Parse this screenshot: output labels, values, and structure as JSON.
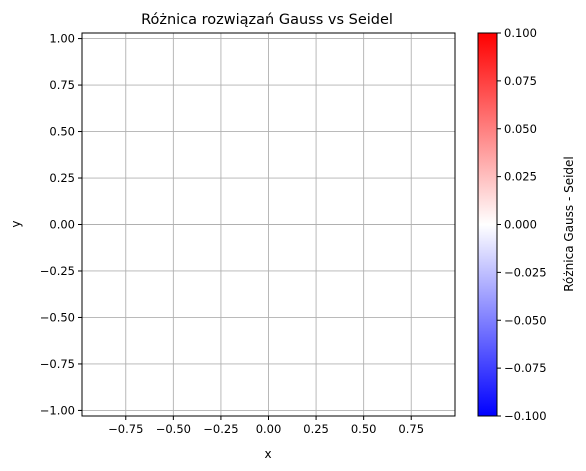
{
  "chart_data": {
    "type": "heatmap",
    "title": "Różnica rozwiązań Gauss vs Seidel",
    "xlabel": "x",
    "ylabel": "y",
    "xlim": [
      -0.98,
      0.98
    ],
    "ylim": [
      -1.03,
      1.03
    ],
    "xticks": [
      -0.75,
      -0.5,
      -0.25,
      0.0,
      0.25,
      0.5,
      0.75
    ],
    "xtick_labels": [
      "−0.75",
      "−0.50",
      "−0.25",
      "0.00",
      "0.25",
      "0.50",
      "0.75"
    ],
    "yticks": [
      1.0,
      0.75,
      0.5,
      0.25,
      0.0,
      -0.25,
      -0.5,
      -0.75,
      -1.0
    ],
    "ytick_labels": [
      "1.00",
      "0.75",
      "0.50",
      "0.25",
      "0.00",
      "−0.25",
      "−0.50",
      "−0.75",
      "−1.00"
    ],
    "grid": true,
    "values": "all approximately 0 (uniform white field)",
    "colorbar": {
      "label": "Różnica Gauss - Seidel",
      "range": [
        -0.1,
        0.1
      ],
      "colormap": "bwr",
      "colors": [
        "#0000ff",
        "#ffffff",
        "#ff0000"
      ],
      "ticks": [
        0.1,
        0.075,
        0.05,
        0.025,
        0.0,
        -0.025,
        -0.05,
        -0.075,
        -0.1
      ],
      "tick_labels": [
        "0.100",
        "0.075",
        "0.050",
        "0.025",
        "0.000",
        "−0.025",
        "−0.050",
        "−0.075",
        "−0.100"
      ]
    }
  }
}
